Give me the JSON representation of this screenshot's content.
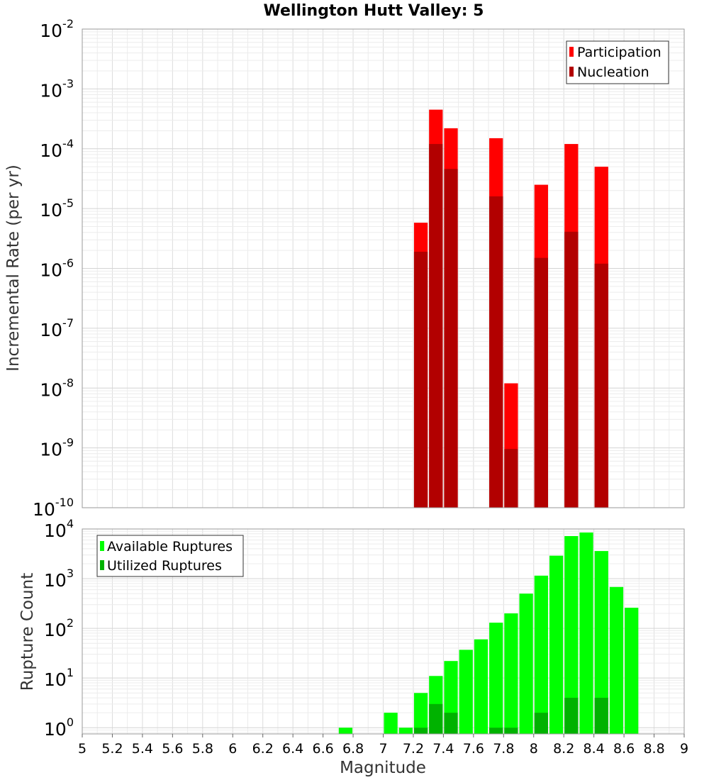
{
  "title": "Wellington Hutt Valley: 5",
  "chart_data": [
    {
      "type": "bar",
      "id": "rates",
      "yscale": "log",
      "ylim": [
        1e-10,
        0.01
      ],
      "xlim": [
        5,
        9
      ],
      "ylabel": "Incremental Rate (per yr)",
      "y_tick_exponents": [
        "-10",
        "-9",
        "-8",
        "-7",
        "-6",
        "-5",
        "-4",
        "-3",
        "-2"
      ],
      "y_tick_base": "10",
      "bin_width": 0.1,
      "legend": {
        "position": "top-right",
        "entries": [
          "Participation",
          "Nucleation"
        ]
      },
      "series": [
        {
          "name": "Participation",
          "color": "#ff0000",
          "x": [
            7.25,
            7.35,
            7.45,
            7.75,
            7.85,
            8.05,
            8.25,
            8.45
          ],
          "values": [
            5.8e-06,
            0.00045,
            0.00022,
            0.00015,
            1.2e-08,
            2.5e-05,
            0.00012,
            5e-05
          ]
        },
        {
          "name": "Nucleation",
          "color": "#b20000",
          "x": [
            7.25,
            7.35,
            7.45,
            7.75,
            7.85,
            8.05,
            8.25,
            8.45
          ],
          "values": [
            1.9e-06,
            0.00012,
            4.6e-05,
            1.6e-05,
            9.6e-10,
            1.5e-06,
            4.1e-06,
            1.2e-06
          ]
        }
      ]
    },
    {
      "type": "bar",
      "id": "counts",
      "yscale": "log",
      "ylim": [
        0.75,
        10000
      ],
      "xlim": [
        5,
        9
      ],
      "xlabel": "Magnitude",
      "ylabel": "Rupture Count",
      "x_ticks": [
        "5",
        "5.2",
        "5.4",
        "5.6",
        "5.8",
        "6",
        "6.2",
        "6.4",
        "6.6",
        "6.8",
        "7",
        "7.2",
        "7.4",
        "7.6",
        "7.8",
        "8",
        "8.2",
        "8.4",
        "8.6",
        "8.8",
        "9"
      ],
      "y_tick_exponents": [
        "0",
        "1",
        "2",
        "3",
        "4"
      ],
      "y_tick_base": "10",
      "bin_width": 0.1,
      "legend": {
        "position": "top-left",
        "entries": [
          "Available Ruptures",
          "Utilized Ruptures"
        ]
      },
      "series": [
        {
          "name": "Available Ruptures",
          "color": "#00ff00",
          "x": [
            6.75,
            7.05,
            7.15,
            7.25,
            7.35,
            7.45,
            7.55,
            7.65,
            7.75,
            7.85,
            7.95,
            8.05,
            8.15,
            8.25,
            8.35,
            8.45,
            8.55,
            8.65
          ],
          "values": [
            1,
            2,
            1,
            5,
            11,
            22,
            37,
            60,
            130,
            200,
            500,
            1150,
            2900,
            7200,
            8500,
            3600,
            680,
            260
          ]
        },
        {
          "name": "Utilized Ruptures",
          "color": "#00b200",
          "x": [
            7.25,
            7.35,
            7.45,
            7.75,
            7.85,
            8.05,
            8.25,
            8.45
          ],
          "values": [
            1,
            3,
            2,
            1,
            1,
            2,
            4,
            4
          ]
        }
      ]
    }
  ]
}
